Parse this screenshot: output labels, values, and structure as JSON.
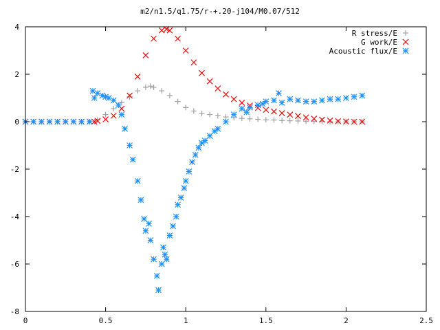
{
  "chart_data": {
    "type": "scatter",
    "title": "m2/n1.5/q1.75/r-+.20-j104/M0.07/512",
    "xlabel": "",
    "ylabel": "",
    "xlim": [
      0,
      2.5
    ],
    "ylim": [
      -8,
      4
    ],
    "xticks": [
      0,
      0.5,
      1,
      1.5,
      2,
      2.5
    ],
    "xtick_labels": [
      "0",
      "0.5",
      "1",
      "1.5",
      "2",
      "2.5"
    ],
    "yticks": [
      4,
      2,
      0,
      -2,
      -4,
      -6,
      -8
    ],
    "ytick_labels": [
      "4",
      "2",
      "0",
      "-2",
      "-4",
      "-6",
      "-8"
    ],
    "grid": false,
    "legend_position": "top-right",
    "series": [
      {
        "name": "R stress/E",
        "color": "#a0a0a0",
        "marker": "plus",
        "x": [
          0.0,
          0.05,
          0.1,
          0.15,
          0.2,
          0.25,
          0.3,
          0.35,
          0.4,
          0.43,
          0.45,
          0.5,
          0.55,
          0.6,
          0.65,
          0.7,
          0.75,
          0.78,
          0.8,
          0.85,
          0.9,
          0.95,
          1.0,
          1.05,
          1.1,
          1.15,
          1.2,
          1.25,
          1.3,
          1.35,
          1.4,
          1.45,
          1.5,
          1.55,
          1.6,
          1.65,
          1.7,
          1.75,
          1.8,
          1.85,
          1.9,
          1.95,
          2.0,
          2.05,
          2.1
        ],
        "y": [
          0,
          0,
          0,
          0,
          0,
          0,
          0,
          0,
          0,
          0,
          0.08,
          0.3,
          0.55,
          0.8,
          1.05,
          1.3,
          1.45,
          1.5,
          1.45,
          1.3,
          1.1,
          0.85,
          0.6,
          0.45,
          0.35,
          0.3,
          0.25,
          0.2,
          0.17,
          0.14,
          0.12,
          0.1,
          0.08,
          0.07,
          0.05,
          0.04,
          0.03,
          0.02,
          0.01,
          0.01,
          0,
          0,
          0,
          0,
          0
        ]
      },
      {
        "name": "G work/E",
        "color": "#ff0000",
        "marker": "cross",
        "x": [
          0.0,
          0.05,
          0.1,
          0.15,
          0.2,
          0.25,
          0.3,
          0.35,
          0.4,
          0.43,
          0.45,
          0.5,
          0.55,
          0.6,
          0.65,
          0.7,
          0.75,
          0.8,
          0.85,
          0.88,
          0.9,
          0.95,
          1.0,
          1.05,
          1.1,
          1.15,
          1.2,
          1.25,
          1.3,
          1.35,
          1.4,
          1.45,
          1.5,
          1.55,
          1.6,
          1.65,
          1.7,
          1.75,
          1.8,
          1.85,
          1.9,
          1.95,
          2.0,
          2.05,
          2.1
        ],
        "y": [
          0,
          0,
          0,
          0,
          0,
          0,
          0,
          0,
          0,
          0,
          0.03,
          0.1,
          0.25,
          0.55,
          1.1,
          1.9,
          2.8,
          3.5,
          3.85,
          3.9,
          3.85,
          3.5,
          3.0,
          2.5,
          2.05,
          1.7,
          1.4,
          1.15,
          0.95,
          0.8,
          0.68,
          0.58,
          0.5,
          0.43,
          0.36,
          0.3,
          0.24,
          0.18,
          0.13,
          0.09,
          0.05,
          0.02,
          0.01,
          0,
          0
        ]
      },
      {
        "name": "Acoustic flux/E",
        "color": "#1e90ff",
        "marker": "star",
        "x": [
          0.0,
          0.05,
          0.1,
          0.15,
          0.2,
          0.25,
          0.3,
          0.35,
          0.4,
          0.42,
          0.43,
          0.45,
          0.48,
          0.5,
          0.52,
          0.55,
          0.58,
          0.6,
          0.62,
          0.65,
          0.67,
          0.7,
          0.72,
          0.74,
          0.75,
          0.77,
          0.78,
          0.8,
          0.82,
          0.83,
          0.85,
          0.86,
          0.87,
          0.88,
          0.9,
          0.92,
          0.94,
          0.95,
          0.97,
          0.99,
          1.0,
          1.02,
          1.04,
          1.06,
          1.08,
          1.1,
          1.12,
          1.15,
          1.18,
          1.2,
          1.25,
          1.3,
          1.35,
          1.38,
          1.4,
          1.45,
          1.48,
          1.5,
          1.55,
          1.58,
          1.6,
          1.65,
          1.7,
          1.75,
          1.8,
          1.85,
          1.9,
          1.95,
          2.0,
          2.05,
          2.1
        ],
        "y": [
          0,
          0,
          0,
          0,
          0,
          0,
          0,
          0,
          0,
          1.3,
          1.0,
          1.2,
          1.1,
          1.05,
          1.0,
          0.9,
          0.7,
          0.3,
          -0.3,
          -1.0,
          -1.6,
          -2.5,
          -3.3,
          -4.1,
          -4.6,
          -4.3,
          -5.0,
          -5.8,
          -6.5,
          -7.1,
          -6.0,
          -5.3,
          -5.6,
          -5.8,
          -4.8,
          -4.4,
          -4.0,
          -3.5,
          -3.2,
          -2.8,
          -2.5,
          -2.1,
          -1.7,
          -1.4,
          -1.1,
          -0.9,
          -0.8,
          -0.6,
          -0.4,
          -0.3,
          0.0,
          0.3,
          0.55,
          0.4,
          0.6,
          0.7,
          0.75,
          0.85,
          0.9,
          1.2,
          0.8,
          0.95,
          0.9,
          0.85,
          0.85,
          0.9,
          0.95,
          0.95,
          1.0,
          1.05,
          1.1
        ]
      }
    ]
  }
}
